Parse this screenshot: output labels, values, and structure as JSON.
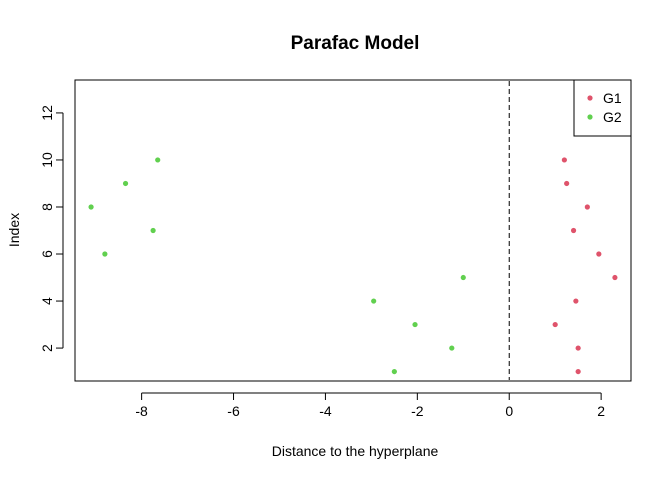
{
  "chart_data": {
    "type": "scatter",
    "title": "Parafac Model",
    "xlabel": "Distance to the hyperplane",
    "ylabel": "Index",
    "xlim": [
      -9.45,
      2.65
    ],
    "ylim": [
      0.6,
      13.4
    ],
    "xticks": [
      "-8",
      "-6",
      "-4",
      "-2",
      "0",
      "2"
    ],
    "yticks": [
      "2",
      "4",
      "6",
      "8",
      "10",
      "12"
    ],
    "reference_line": {
      "x": 0,
      "style": "dashed",
      "orientation": "vertical"
    },
    "legend": {
      "position": "top-right"
    },
    "series": [
      {
        "name": "G1",
        "color": "#DF536B",
        "points": [
          [
            1.5,
            1
          ],
          [
            1.5,
            2
          ],
          [
            1.0,
            3
          ],
          [
            1.45,
            4
          ],
          [
            2.3,
            5
          ],
          [
            1.95,
            6
          ],
          [
            1.4,
            7
          ],
          [
            1.7,
            8
          ],
          [
            1.25,
            9
          ],
          [
            1.2,
            10
          ]
        ]
      },
      {
        "name": "G2",
        "color": "#61D04F",
        "points": [
          [
            -2.5,
            1
          ],
          [
            -1.25,
            2
          ],
          [
            -2.05,
            3
          ],
          [
            -2.95,
            4
          ],
          [
            -1.0,
            5
          ],
          [
            -8.8,
            6
          ],
          [
            -7.75,
            7
          ],
          [
            -9.1,
            8
          ],
          [
            -8.35,
            9
          ],
          [
            -7.65,
            10
          ]
        ]
      }
    ]
  }
}
